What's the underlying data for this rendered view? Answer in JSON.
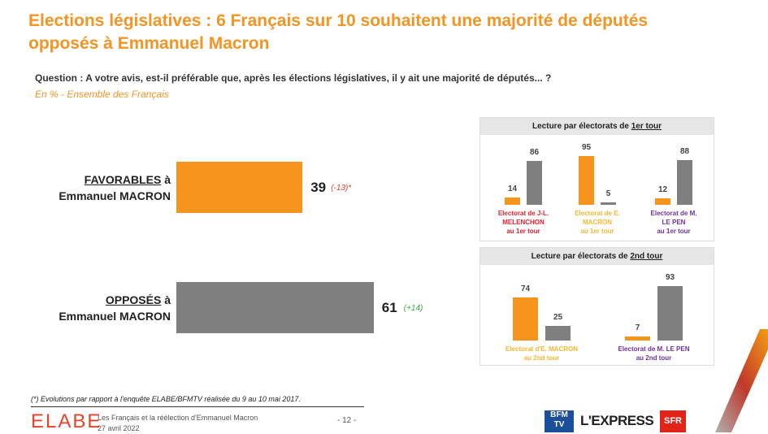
{
  "header": {
    "title": "Elections législatives : 6 Français sur 10 souhaitent une majorité de députés opposés à Emmanuel Macron",
    "question": "Question : A votre avis, est-il préférable que, après les élections législatives, il y ait une majorité de députés... ?",
    "scope": "En % - Ensemble des Français"
  },
  "colors": {
    "orange": "#f7941d",
    "gray": "#7f7f7f",
    "title": "#f39423",
    "red": "#e8212b",
    "purple": "#7030a0",
    "negative": "#e03c31",
    "positive": "#3aa845"
  },
  "chart_data": [
    {
      "type": "bar",
      "orientation": "horizontal",
      "categories": [
        "FAVORABLES à Emmanuel MACRON",
        "OPPOSÉS à Emmanuel MACRON"
      ],
      "category_parts": [
        {
          "strong": "FAVORABLES",
          "rest": " à",
          "line2": "Emmanuel MACRON"
        },
        {
          "strong": "OPPOSÉS",
          "rest": " à",
          "line2": "Emmanuel MACRON"
        }
      ],
      "values": [
        39,
        61
      ],
      "value_labels": [
        "39",
        "61"
      ],
      "evolutions": [
        "(-13)*",
        "(+14)"
      ],
      "xlim": [
        0,
        100
      ]
    },
    {
      "type": "bar",
      "title_pre": "Lecture par électorats de ",
      "title_ul": "1er tour",
      "groups": [
        {
          "label": [
            "Electorat de J-L.",
            "MELENCHON",
            "au 1er tour"
          ],
          "color": "#e8212b",
          "values": [
            14,
            86
          ]
        },
        {
          "label": [
            "Electorat de E.",
            "MACRON",
            "au  1er tour"
          ],
          "color": "#f7b731",
          "values": [
            95,
            5
          ]
        },
        {
          "label": [
            "Electorat de M.",
            "LE PEN",
            "au  1er tour"
          ],
          "color": "#7030a0",
          "values": [
            12,
            88
          ]
        }
      ],
      "series": [
        "Favorables",
        "Opposés"
      ],
      "ylim": [
        0,
        100
      ]
    },
    {
      "type": "bar",
      "title_pre": "Lecture par électorats de ",
      "title_ul": "2nd tour",
      "groups": [
        {
          "label": [
            "Electorat d'E. MACRON",
            "au 2nd tour"
          ],
          "color": "#f7b731",
          "values": [
            74,
            25
          ]
        },
        {
          "label": [
            "Electorat de M. LE PEN",
            "au  2nd tour"
          ],
          "color": "#7030a0",
          "values": [
            7,
            93
          ]
        }
      ],
      "series": [
        "Favorables",
        "Opposés"
      ],
      "ylim": [
        0,
        100
      ]
    }
  ],
  "footer": {
    "note": "(*) Evolutions par rapport à l'enquête ELABE/BFMTV réalisée du 9 au 10 mai 2017.",
    "brand": "ELABE",
    "subtitle": "Les Français et la réélection d'Emmanuel Macron",
    "date": "27 avril 2022",
    "page": "- 12 -",
    "logos": {
      "bfm": "BFM TV",
      "lexpress": "L'EXPRESS",
      "sfr": "SFR"
    }
  }
}
